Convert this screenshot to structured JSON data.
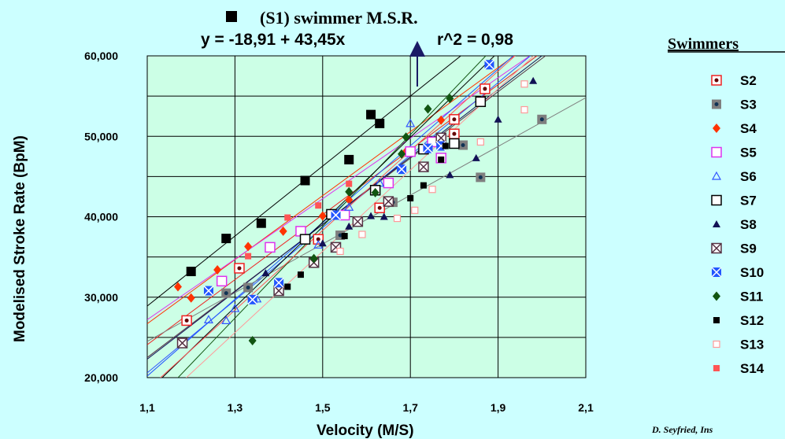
{
  "chart_data": {
    "type": "scatter",
    "title": "(S1)  swimmer  M.S.R.",
    "subtitle": "y  =  -18,91  +  43,45x",
    "annotation": "r^2  =  0,98",
    "xlabel": "Velocity  (M/S)",
    "ylabel": "Modelised Stroke Rate (BpM)",
    "xlim": [
      1.1,
      2.1
    ],
    "ylim": [
      20,
      60
    ],
    "x_ticks": [
      "1,1",
      "1,3",
      "1,5",
      "1,7",
      "1,9",
      "2,1"
    ],
    "y_ticks": [
      "20,000",
      "30,000",
      "40,000",
      "50,000",
      "60,000"
    ],
    "grid": true,
    "legend_title": "Swimmers",
    "legend_position": "right",
    "credit": "D.  Seyfried,  Ins",
    "series": [
      {
        "name": "S1",
        "marker": "square-filled",
        "color": "#000000",
        "show_in_legend": false,
        "points": [
          [
            1.2,
            33.2
          ],
          [
            1.28,
            37.3
          ],
          [
            1.36,
            39.2
          ],
          [
            1.46,
            44.5
          ],
          [
            1.56,
            47.1
          ],
          [
            1.61,
            52.7
          ],
          [
            1.63,
            51.6
          ]
        ]
      },
      {
        "name": "S2",
        "marker": "square-dot",
        "color": "#ee2222",
        "points": [
          [
            1.19,
            27.1
          ],
          [
            1.31,
            33.6
          ],
          [
            1.49,
            37.2
          ],
          [
            1.63,
            41.1
          ],
          [
            1.8,
            50.3
          ],
          [
            1.8,
            52.1
          ],
          [
            1.87,
            55.9
          ]
        ]
      },
      {
        "name": "S3",
        "marker": "square-gray-dot",
        "color": "#7f7f7f",
        "points": [
          [
            1.28,
            30.5
          ],
          [
            1.33,
            31.2
          ],
          [
            1.54,
            37.7
          ],
          [
            1.66,
            41.8
          ],
          [
            1.82,
            48.9
          ],
          [
            1.86,
            44.9
          ],
          [
            2.0,
            52.1
          ]
        ]
      },
      {
        "name": "S4",
        "marker": "diamond",
        "color": "#ff3300",
        "points": [
          [
            1.17,
            31.3
          ],
          [
            1.2,
            29.9
          ],
          [
            1.26,
            33.4
          ],
          [
            1.33,
            36.3
          ],
          [
            1.41,
            38.2
          ],
          [
            1.5,
            40.1
          ],
          [
            1.56,
            42.1
          ],
          [
            1.69,
            48.1
          ],
          [
            1.77,
            52
          ]
        ]
      },
      {
        "name": "S5",
        "marker": "square-open",
        "color": "#dd33ee",
        "points": [
          [
            1.27,
            32.0
          ],
          [
            1.38,
            36.2
          ],
          [
            1.45,
            38.2
          ],
          [
            1.55,
            40.2
          ],
          [
            1.65,
            44.2
          ],
          [
            1.7,
            48.1
          ],
          [
            1.75,
            49.3
          ],
          [
            1.77,
            47.3
          ]
        ]
      },
      {
        "name": "S6",
        "marker": "triangle-open",
        "color": "#3355ff",
        "points": [
          [
            1.24,
            27.2
          ],
          [
            1.28,
            27.1
          ],
          [
            1.3,
            28.6
          ],
          [
            1.35,
            29.8
          ],
          [
            1.49,
            36.5
          ],
          [
            1.56,
            41.2
          ],
          [
            1.63,
            44.2
          ],
          [
            1.7,
            51.6
          ]
        ]
      },
      {
        "name": "S7",
        "marker": "square-open",
        "color": "#000000",
        "points": [
          [
            1.46,
            37.2
          ],
          [
            1.52,
            40.3
          ],
          [
            1.62,
            43.3
          ],
          [
            1.73,
            48.4
          ],
          [
            1.8,
            49.1
          ],
          [
            1.86,
            54.3
          ]
        ]
      },
      {
        "name": "S8",
        "marker": "triangle-filled",
        "color": "#111155",
        "points": [
          [
            1.37,
            33.0
          ],
          [
            1.5,
            36.7
          ],
          [
            1.56,
            38.8
          ],
          [
            1.61,
            40.1
          ],
          [
            1.64,
            40.0
          ],
          [
            1.79,
            45.2
          ],
          [
            1.85,
            47.3
          ],
          [
            1.9,
            52.1
          ],
          [
            1.98,
            56.9
          ]
        ]
      },
      {
        "name": "S9",
        "marker": "square-x",
        "color": "#553344",
        "points": [
          [
            1.18,
            24.3
          ],
          [
            1.4,
            30.8
          ],
          [
            1.48,
            34.3
          ],
          [
            1.53,
            36.2
          ],
          [
            1.58,
            39.4
          ],
          [
            1.65,
            41.9
          ],
          [
            1.73,
            46.2
          ],
          [
            1.77,
            49.8
          ]
        ]
      },
      {
        "name": "S10",
        "marker": "square-x-blue",
        "color": "#2255ff",
        "points": [
          [
            1.24,
            30.8
          ],
          [
            1.34,
            29.7
          ],
          [
            1.4,
            31.8
          ],
          [
            1.53,
            40.2
          ],
          [
            1.68,
            45.9
          ],
          [
            1.74,
            48.5
          ],
          [
            1.77,
            48.8
          ],
          [
            1.88,
            58.9
          ]
        ]
      },
      {
        "name": "S11",
        "marker": "diamond",
        "color": "#115511",
        "points": [
          [
            1.34,
            24.6
          ],
          [
            1.48,
            34.8
          ],
          [
            1.56,
            43.1
          ],
          [
            1.62,
            43.0
          ],
          [
            1.68,
            47.8
          ],
          [
            1.69,
            49.9
          ],
          [
            1.74,
            53.4
          ],
          [
            1.79,
            54.7
          ]
        ]
      },
      {
        "name": "S12",
        "marker": "square-filled-small",
        "color": "#000000",
        "points": [
          [
            1.42,
            31.3
          ],
          [
            1.45,
            32.8
          ],
          [
            1.55,
            37.6
          ],
          [
            1.7,
            42.3
          ],
          [
            1.73,
            43.9
          ],
          [
            1.77,
            47.1
          ],
          [
            1.78,
            48.8
          ]
        ]
      },
      {
        "name": "S13",
        "marker": "square-open-small",
        "color": "#ff9999",
        "points": [
          [
            1.54,
            35.7
          ],
          [
            1.59,
            37.8
          ],
          [
            1.67,
            39.8
          ],
          [
            1.71,
            40.8
          ],
          [
            1.75,
            43.4
          ],
          [
            1.86,
            49.3
          ],
          [
            1.96,
            53.3
          ],
          [
            1.96,
            56.5
          ]
        ]
      },
      {
        "name": "S14",
        "marker": "square-filled-small",
        "color": "#ff5555",
        "points": [
          [
            1.33,
            35.1
          ],
          [
            1.42,
            39.9
          ],
          [
            1.49,
            41.4
          ],
          [
            1.56,
            44.1
          ]
        ]
      }
    ],
    "regression_lines": [
      {
        "color": "#000000",
        "y_at_1_1": 28.9,
        "y_at_2_1": 72.4
      },
      {
        "color": "#ff3300",
        "y_at_1_1": 26.7,
        "y_at_2_1": 66.5
      },
      {
        "color": "#dd33ee",
        "y_at_1_1": 27.2,
        "y_at_2_1": 64.8
      },
      {
        "color": "#ee2222",
        "y_at_1_1": 24.1,
        "y_at_2_1": 64.5
      },
      {
        "color": "#3355ff",
        "y_at_1_1": 20.6,
        "y_at_2_1": 65.7
      },
      {
        "color": "#2255ff",
        "y_at_1_1": 20.2,
        "y_at_2_1": 67.9
      },
      {
        "color": "#553344",
        "y_at_1_1": 22.5,
        "y_at_2_1": 63.8
      },
      {
        "color": "#111155",
        "y_at_1_1": 22.3,
        "y_at_2_1": 64.2
      },
      {
        "color": "#7f7f7f",
        "y_at_1_1": 24.5,
        "y_at_2_1": 54.8
      },
      {
        "color": "#115511",
        "y_at_1_1": 16.0,
        "y_at_2_1": 73.0
      },
      {
        "color": "#000000",
        "y_at_1_1": 18.2,
        "y_at_2_1": 71.0
      },
      {
        "color": "#ff9999",
        "y_at_1_1": 15.5,
        "y_at_2_1": 66.0
      },
      {
        "color": "#ff5555",
        "y_at_1_1": 18.5,
        "y_at_2_1": 68.0
      }
    ],
    "colors": {
      "background": "#ccffff",
      "plot_area": "#ccffe6",
      "arrow": "#1a1a66"
    }
  }
}
